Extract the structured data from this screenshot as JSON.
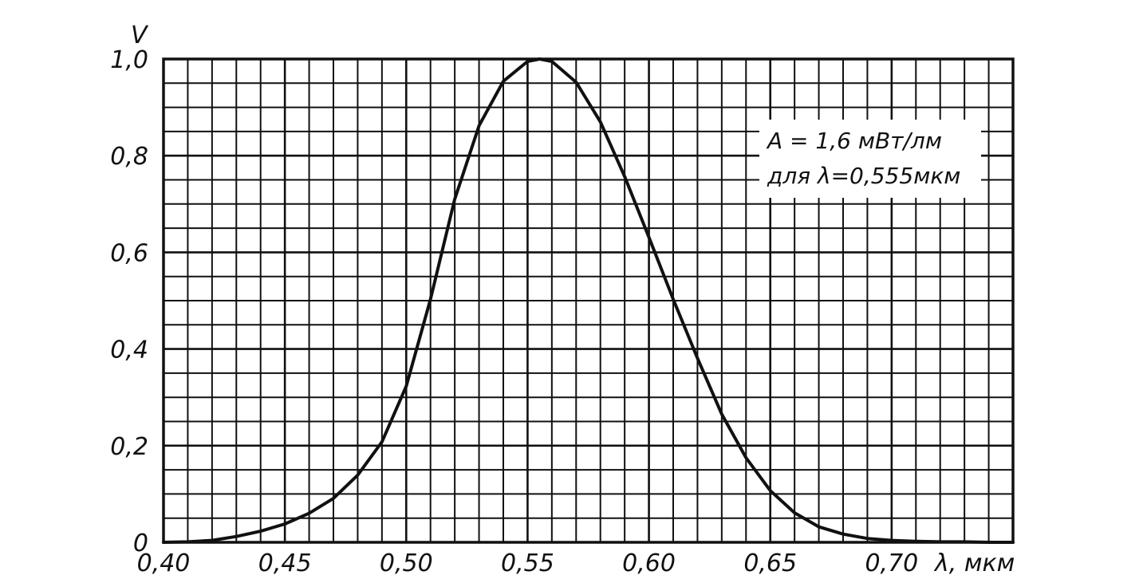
{
  "chart_data": {
    "type": "line",
    "title": "",
    "ylabel": "V",
    "xlabel": "λ, мкм",
    "xlim": [
      0.4,
      0.75
    ],
    "ylim": [
      0,
      1.0
    ],
    "x_ticks": [
      "0,40",
      "0,45",
      "0,50",
      "0,55",
      "0,60",
      "0,65",
      "0,70"
    ],
    "y_ticks": [
      "0",
      "0,2",
      "0,4",
      "0,6",
      "0,8",
      "1,0"
    ],
    "grid": true,
    "annotation": [
      "A = 1,6 мВт/лм",
      "для λ=0,555мкм"
    ],
    "colors": {
      "curve": "#111111",
      "grid": "#111111",
      "background": "#ffffff"
    },
    "series": [
      {
        "x": [
          0.4,
          0.41,
          0.42,
          0.43,
          0.44,
          0.45,
          0.46,
          0.47,
          0.48,
          0.49,
          0.5,
          0.51,
          0.52,
          0.53,
          0.54,
          0.55,
          0.555,
          0.56,
          0.57,
          0.58,
          0.59,
          0.6,
          0.61,
          0.62,
          0.63,
          0.64,
          0.65,
          0.66,
          0.67,
          0.68,
          0.69,
          0.7,
          0.71,
          0.72,
          0.73,
          0.74,
          0.75
        ],
        "y": [
          0.0,
          0.001,
          0.004,
          0.012,
          0.023,
          0.038,
          0.06,
          0.091,
          0.139,
          0.208,
          0.323,
          0.503,
          0.71,
          0.862,
          0.954,
          0.995,
          1.0,
          0.995,
          0.952,
          0.87,
          0.757,
          0.631,
          0.503,
          0.381,
          0.265,
          0.175,
          0.107,
          0.061,
          0.032,
          0.017,
          0.008,
          0.004,
          0.002,
          0.001,
          0.001,
          0.0,
          0.0
        ]
      }
    ]
  }
}
